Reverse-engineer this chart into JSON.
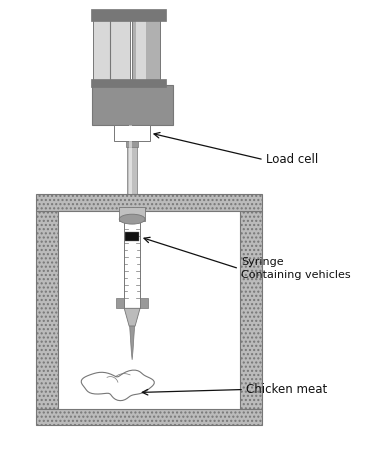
{
  "background_color": "#ffffff",
  "label_load_cell": "Load cell",
  "label_syringe": "Syringe\nContaining vehicles",
  "label_chicken": "Chicken meat",
  "black": "#111111",
  "dark_gray": "#777777",
  "medium_gray": "#999999",
  "light_gray": "#bbbbbb",
  "very_light_gray": "#dddddd",
  "white": "#ffffff",
  "hatch_gray": "#aaaaaa",
  "motor_left_light": "#d8d8d8",
  "motor_right_dark": "#b0b0b0",
  "load_cell_color": "#909090",
  "shaft_color": "#c0c0c0",
  "pillar_color": "#b8b8b8"
}
